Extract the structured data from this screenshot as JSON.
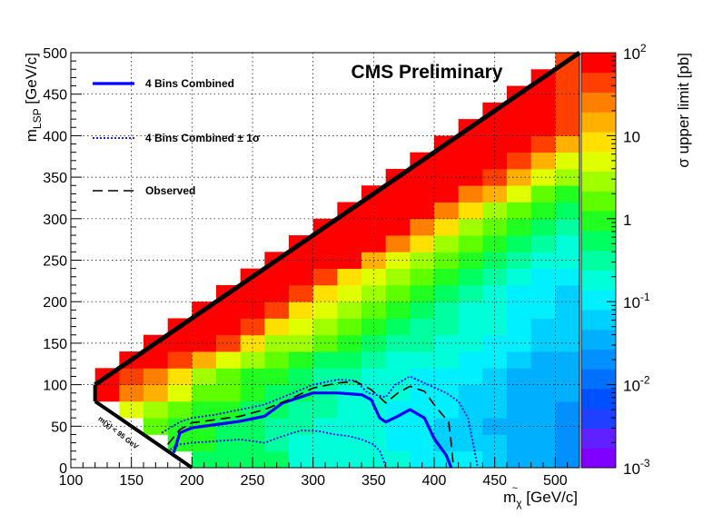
{
  "chart_data": {
    "type": "heatmap",
    "title": "CMS Preliminary",
    "xlabel": "m",
    "xlabel_sub": "χ",
    "xlabel_sup": "~",
    "xlabel_unit": "[GeV/c]",
    "ylabel": "m",
    "ylabel_sub": "LSP",
    "ylabel_unit": "[GeV/c]",
    "zlabel": "σ upper limit [pb]",
    "xlim": [
      100,
      520
    ],
    "ylim": [
      0,
      500
    ],
    "zlim": [
      0.001,
      100
    ],
    "zscale": "log",
    "grid": true,
    "xticks": [
      "100",
      "150",
      "200",
      "250",
      "300",
      "350",
      "400",
      "450",
      "500"
    ],
    "yticks": [
      "0",
      "50",
      "100",
      "150",
      "200",
      "250",
      "300",
      "350",
      "400",
      "450",
      "500"
    ],
    "zticks": [
      {
        "base": "10",
        "exp": "-3",
        "value": 0.001
      },
      {
        "base": "10",
        "exp": "-2",
        "value": 0.01
      },
      {
        "base": "10",
        "exp": "-1",
        "value": 0.1
      },
      {
        "base": "1",
        "exp": "",
        "value": 1
      },
      {
        "base": "10",
        "exp": "",
        "value": 10
      },
      {
        "base": "10",
        "exp": "2",
        "value": 100
      }
    ],
    "palette": [
      "#8000ff",
      "#6020ff",
      "#2040ff",
      "#0050ff",
      "#0070ff",
      "#0090ff",
      "#00b0ff",
      "#00d0ff",
      "#00f0ff",
      "#00ffd8",
      "#00ffa0",
      "#00ff60",
      "#20ff20",
      "#60ff00",
      "#a0ff00",
      "#e0ff00",
      "#ffe000",
      "#ffb000",
      "#ff8000",
      "#ff4000",
      "#ff0000"
    ],
    "cell_width": 20,
    "cell_height": 20,
    "levels_row_note": "each row: y bin start, x bin start, list of palette indices (0-20)",
    "cells": [
      {
        "y": 0,
        "x0": 200,
        "v": [
          11,
          11,
          11,
          11,
          9,
          9,
          9,
          9,
          9,
          8,
          8,
          8,
          7,
          6,
          6,
          5,
          5
        ]
      },
      {
        "y": 20,
        "x0": 180,
        "v": [
          12,
          12,
          11,
          11,
          10,
          9,
          9,
          9,
          9,
          8,
          8,
          7,
          7,
          7,
          6,
          6,
          5,
          5
        ]
      },
      {
        "y": 40,
        "x0": 160,
        "v": [
          13,
          12,
          12,
          11,
          11,
          10,
          10,
          9,
          9,
          9,
          8,
          8,
          7,
          7,
          6,
          6,
          6,
          5,
          5
        ]
      },
      {
        "y": 60,
        "x0": 140,
        "v": [
          15,
          14,
          13,
          12,
          12,
          11,
          11,
          10,
          10,
          9,
          9,
          8,
          8,
          8,
          7,
          7,
          6,
          6,
          5,
          5
        ]
      },
      {
        "y": 80,
        "x0": 120,
        "v": [
          20,
          18,
          17,
          15,
          13,
          13,
          12,
          11,
          11,
          10,
          9,
          9,
          9,
          8,
          8,
          7,
          7,
          6,
          6,
          6,
          5
        ]
      },
      {
        "y": 100,
        "x0": 120,
        "v": [
          20,
          19,
          18,
          16,
          14,
          13,
          12,
          12,
          11,
          10,
          10,
          9,
          9,
          8,
          8,
          8,
          7,
          6,
          6,
          6,
          5
        ]
      },
      {
        "y": 120,
        "x0": 140,
        "v": [
          20,
          20,
          19,
          17,
          15,
          14,
          13,
          12,
          11,
          11,
          10,
          9,
          9,
          9,
          8,
          8,
          7,
          6,
          6,
          5
        ]
      },
      {
        "y": 140,
        "x0": 160,
        "v": [
          20,
          20,
          20,
          19,
          16,
          14,
          14,
          13,
          12,
          11,
          10,
          10,
          9,
          9,
          8,
          8,
          7,
          7,
          6
        ]
      },
      {
        "y": 160,
        "x0": 180,
        "v": [
          20,
          20,
          20,
          19,
          16,
          15,
          14,
          13,
          12,
          11,
          10,
          10,
          9,
          9,
          8,
          7,
          7,
          6
        ]
      },
      {
        "y": 180,
        "x0": 200,
        "v": [
          20,
          20,
          20,
          19,
          16,
          15,
          14,
          13,
          12,
          11,
          10,
          9,
          9,
          8,
          8,
          7,
          6
        ]
      },
      {
        "y": 200,
        "x0": 220,
        "v": [
          20,
          20,
          20,
          19,
          16,
          15,
          14,
          13,
          12,
          11,
          10,
          9,
          8,
          8,
          7,
          6
        ]
      },
      {
        "y": 220,
        "x0": 240,
        "v": [
          20,
          20,
          20,
          19,
          16,
          15,
          14,
          13,
          12,
          11,
          10,
          9,
          8,
          8,
          7
        ]
      },
      {
        "y": 240,
        "x0": 260,
        "v": [
          20,
          20,
          20,
          20,
          17,
          15,
          14,
          13,
          12,
          11,
          10,
          9,
          9,
          8
        ]
      },
      {
        "y": 260,
        "x0": 280,
        "v": [
          20,
          20,
          20,
          20,
          18,
          16,
          14,
          13,
          12,
          11,
          10,
          9,
          9
        ]
      },
      {
        "y": 280,
        "x0": 300,
        "v": [
          20,
          20,
          20,
          20,
          18,
          16,
          14,
          13,
          12,
          11,
          10,
          9
        ]
      },
      {
        "y": 300,
        "x0": 320,
        "v": [
          20,
          20,
          20,
          20,
          18,
          16,
          14,
          13,
          12,
          11,
          10
        ]
      },
      {
        "y": 320,
        "x0": 340,
        "v": [
          20,
          20,
          20,
          20,
          18,
          17,
          15,
          13,
          12,
          11
        ]
      },
      {
        "y": 340,
        "x0": 360,
        "v": [
          20,
          20,
          20,
          20,
          19,
          17,
          15,
          14,
          13
        ]
      },
      {
        "y": 360,
        "x0": 380,
        "v": [
          20,
          20,
          20,
          20,
          19,
          17,
          15,
          14
        ]
      },
      {
        "y": 380,
        "x0": 400,
        "v": [
          20,
          20,
          20,
          20,
          19,
          17,
          14
        ]
      },
      {
        "y": 400,
        "x0": 420,
        "v": [
          20,
          20,
          20,
          20,
          19,
          18
        ]
      },
      {
        "y": 420,
        "x0": 440,
        "v": [
          20,
          20,
          20,
          19,
          17
        ]
      },
      {
        "y": 440,
        "x0": 460,
        "v": [
          20,
          20,
          19,
          18
        ]
      },
      {
        "y": 460,
        "x0": 480,
        "v": [
          20,
          19,
          18
        ]
      },
      {
        "y": 480,
        "x0": 500,
        "v": [
          19,
          18
        ]
      }
    ],
    "diagonal": [
      [
        120,
        100
      ],
      [
        520,
        500
      ]
    ],
    "kinematic_line": [
      [
        120,
        80
      ],
      [
        200,
        0
      ]
    ],
    "kinematic_label": "m(χ̃) < 95 GeV",
    "series": [
      {
        "name": "4 Bins Combined",
        "style": "solid",
        "color": "#0000ff",
        "points": [
          [
            185,
            18
          ],
          [
            190,
            42
          ],
          [
            200,
            48
          ],
          [
            220,
            52
          ],
          [
            240,
            56
          ],
          [
            260,
            62
          ],
          [
            275,
            78
          ],
          [
            300,
            90
          ],
          [
            320,
            90
          ],
          [
            340,
            88
          ],
          [
            348,
            82
          ],
          [
            355,
            60
          ],
          [
            360,
            55
          ],
          [
            370,
            62
          ],
          [
            380,
            70
          ],
          [
            392,
            60
          ],
          [
            400,
            35
          ],
          [
            410,
            15
          ],
          [
            414,
            0
          ]
        ]
      },
      {
        "name": "4 Bins Combined  ± 1σ",
        "style": "dotted",
        "color": "#0000ff",
        "points": [
          [
            175,
            42
          ],
          [
            190,
            55
          ],
          [
            200,
            60
          ],
          [
            220,
            64
          ],
          [
            240,
            70
          ],
          [
            260,
            76
          ],
          [
            280,
            88
          ],
          [
            300,
            100
          ],
          [
            320,
            106
          ],
          [
            335,
            105
          ],
          [
            345,
            90
          ],
          [
            360,
            85
          ],
          [
            368,
            100
          ],
          [
            380,
            110
          ],
          [
            395,
            100
          ],
          [
            410,
            90
          ],
          [
            420,
            80
          ],
          [
            428,
            60
          ],
          [
            432,
            30
          ],
          [
            436,
            0
          ]
        ]
      },
      {
        "name": "4 Bins Combined  ± 1σ (lower)",
        "style": "dotted",
        "color": "#0000ff",
        "points": [
          [
            182,
            22
          ],
          [
            190,
            28
          ],
          [
            200,
            30
          ],
          [
            220,
            32
          ],
          [
            240,
            34
          ],
          [
            260,
            30
          ],
          [
            275,
            38
          ],
          [
            290,
            45
          ],
          [
            305,
            44
          ],
          [
            318,
            40
          ],
          [
            330,
            38
          ],
          [
            340,
            34
          ],
          [
            350,
            28
          ],
          [
            355,
            20
          ],
          [
            358,
            10
          ],
          [
            360,
            0
          ]
        ]
      },
      {
        "name": "Observed",
        "style": "dashed",
        "color": "#000000",
        "points": [
          [
            180,
            28
          ],
          [
            190,
            46
          ],
          [
            200,
            54
          ],
          [
            220,
            58
          ],
          [
            240,
            62
          ],
          [
            260,
            70
          ],
          [
            280,
            82
          ],
          [
            300,
            96
          ],
          [
            320,
            102
          ],
          [
            335,
            104
          ],
          [
            348,
            94
          ],
          [
            355,
            85
          ],
          [
            360,
            78
          ],
          [
            370,
            90
          ],
          [
            380,
            98
          ],
          [
            392,
            92
          ],
          [
            402,
            72
          ],
          [
            412,
            55
          ],
          [
            414,
            30
          ],
          [
            416,
            0
          ]
        ]
      }
    ],
    "legend": {
      "placement": "top-left",
      "entries": [
        {
          "label": "4 Bins Combined",
          "style": "solid",
          "color": "#0000ff"
        },
        {
          "label": "4 Bins Combined   ± 1σ",
          "style": "dotted",
          "color": "#0000ff"
        },
        {
          "label": "Observed",
          "style": "dashed",
          "color": "#000000"
        }
      ]
    }
  }
}
